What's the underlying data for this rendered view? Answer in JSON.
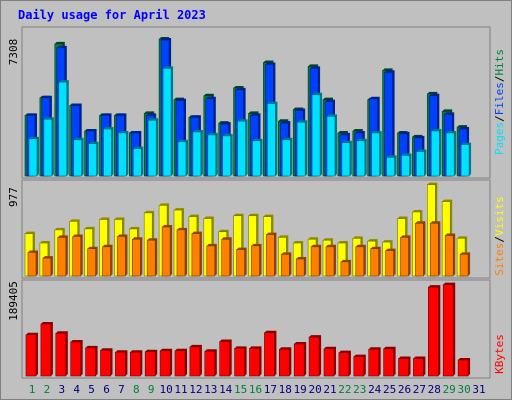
{
  "title": "Daily usage for April 2023",
  "colors": {
    "background": "#c0c0c0",
    "title": "#0000ff",
    "hits": "#008040",
    "files": "#0040ff",
    "pages": "#00e0ff",
    "visits": "#ffff00",
    "sites": "#ff8000",
    "kbytes": "#ff0000",
    "weekday_label": "#000080",
    "weekend_label": "#008040"
  },
  "legend": {
    "top": [
      "Pages",
      "Files",
      "Hits"
    ],
    "middle": [
      "Sites",
      "Visits"
    ],
    "bottom": [
      "KBytes"
    ]
  },
  "chart_data": [
    {
      "type": "bar",
      "panel": "hits-files-pages",
      "ymax_label": "7308",
      "ylim": [
        0,
        7308
      ],
      "categories": [
        "1",
        "2",
        "3",
        "4",
        "5",
        "6",
        "7",
        "8",
        "9",
        "10",
        "11",
        "12",
        "13",
        "14",
        "15",
        "16",
        "17",
        "18",
        "19",
        "20",
        "21",
        "22",
        "23",
        "24",
        "25",
        "26",
        "27",
        "28",
        "29",
        "30",
        "31"
      ],
      "series": [
        {
          "name": "Hits",
          "values": [
            3100,
            4000,
            6750,
            3600,
            2300,
            3100,
            3100,
            2200,
            3200,
            7000,
            3900,
            3000,
            4100,
            2700,
            4500,
            3200,
            5800,
            2800,
            3400,
            5600,
            3900,
            2200,
            2300,
            3900,
            5400,
            2200,
            2000,
            4200,
            3300,
            2500,
            0
          ]
        },
        {
          "name": "Files",
          "values": [
            3100,
            4000,
            6550,
            3600,
            2300,
            3100,
            3100,
            2200,
            3100,
            6950,
            3850,
            3000,
            3950,
            2650,
            4400,
            3100,
            5700,
            2700,
            3350,
            5500,
            3800,
            2100,
            2200,
            3950,
            5300,
            2150,
            1950,
            4100,
            3150,
            2400,
            0
          ]
        },
        {
          "name": "Pages",
          "values": [
            1900,
            2900,
            4800,
            1850,
            1650,
            2400,
            2200,
            1400,
            2850,
            5500,
            1750,
            2250,
            2100,
            2050,
            2800,
            1800,
            3700,
            1850,
            2750,
            4150,
            3050,
            1700,
            1800,
            2200,
            950,
            1050,
            1250,
            2300,
            2200,
            1600,
            0
          ]
        }
      ]
    },
    {
      "type": "bar",
      "panel": "visits-sites",
      "ymax_label": "977",
      "ylim": [
        0,
        977
      ],
      "categories": [
        "1",
        "2",
        "3",
        "4",
        "5",
        "6",
        "7",
        "8",
        "9",
        "10",
        "11",
        "12",
        "13",
        "14",
        "15",
        "16",
        "17",
        "18",
        "19",
        "20",
        "21",
        "22",
        "23",
        "24",
        "25",
        "26",
        "27",
        "28",
        "29",
        "30",
        "31"
      ],
      "series": [
        {
          "name": "Visits",
          "values": [
            450,
            350,
            490,
            580,
            500,
            600,
            600,
            500,
            670,
            750,
            700,
            630,
            610,
            470,
            640,
            640,
            630,
            410,
            350,
            390,
            380,
            350,
            400,
            370,
            360,
            610,
            680,
            970,
            790,
            400,
            0
          ]
        },
        {
          "name": "Sites",
          "values": [
            250,
            190,
            410,
            420,
            290,
            310,
            420,
            390,
            380,
            520,
            490,
            450,
            320,
            390,
            280,
            320,
            440,
            230,
            180,
            310,
            310,
            150,
            310,
            290,
            270,
            410,
            560,
            560,
            430,
            230,
            0
          ]
        }
      ]
    },
    {
      "type": "bar",
      "panel": "kbytes",
      "ymax_label": "189405",
      "ylim": [
        0,
        189405
      ],
      "categories": [
        "1",
        "2",
        "3",
        "4",
        "5",
        "6",
        "7",
        "8",
        "9",
        "10",
        "11",
        "12",
        "13",
        "14",
        "15",
        "16",
        "17",
        "18",
        "19",
        "20",
        "21",
        "22",
        "23",
        "24",
        "25",
        "26",
        "27",
        "28",
        "29",
        "30",
        "31"
      ],
      "series": [
        {
          "name": "KBytes",
          "values": [
            85000,
            107000,
            88000,
            70000,
            58000,
            53000,
            49000,
            49000,
            50000,
            52000,
            52000,
            60000,
            51000,
            71000,
            57000,
            57000,
            89000,
            55000,
            66000,
            80000,
            56000,
            48000,
            40000,
            55000,
            56000,
            36000,
            36000,
            183000,
            188000,
            33000,
            0
          ]
        }
      ]
    }
  ],
  "x_labels": [
    {
      "text": "1",
      "weekend": true
    },
    {
      "text": "2",
      "weekend": true
    },
    {
      "text": "3",
      "weekend": false
    },
    {
      "text": "4",
      "weekend": false
    },
    {
      "text": "5",
      "weekend": false
    },
    {
      "text": "6",
      "weekend": false
    },
    {
      "text": "7",
      "weekend": false
    },
    {
      "text": "8",
      "weekend": true
    },
    {
      "text": "9",
      "weekend": true
    },
    {
      "text": "10",
      "weekend": false
    },
    {
      "text": "11",
      "weekend": false
    },
    {
      "text": "12",
      "weekend": false
    },
    {
      "text": "13",
      "weekend": false
    },
    {
      "text": "14",
      "weekend": false
    },
    {
      "text": "15",
      "weekend": true
    },
    {
      "text": "16",
      "weekend": true
    },
    {
      "text": "17",
      "weekend": false
    },
    {
      "text": "18",
      "weekend": false
    },
    {
      "text": "19",
      "weekend": false
    },
    {
      "text": "20",
      "weekend": false
    },
    {
      "text": "21",
      "weekend": false
    },
    {
      "text": "22",
      "weekend": true
    },
    {
      "text": "23",
      "weekend": true
    },
    {
      "text": "24",
      "weekend": false
    },
    {
      "text": "25",
      "weekend": false
    },
    {
      "text": "26",
      "weekend": false
    },
    {
      "text": "27",
      "weekend": false
    },
    {
      "text": "28",
      "weekend": false
    },
    {
      "text": "29",
      "weekend": true
    },
    {
      "text": "30",
      "weekend": true
    },
    {
      "text": "31",
      "weekend": false
    }
  ]
}
